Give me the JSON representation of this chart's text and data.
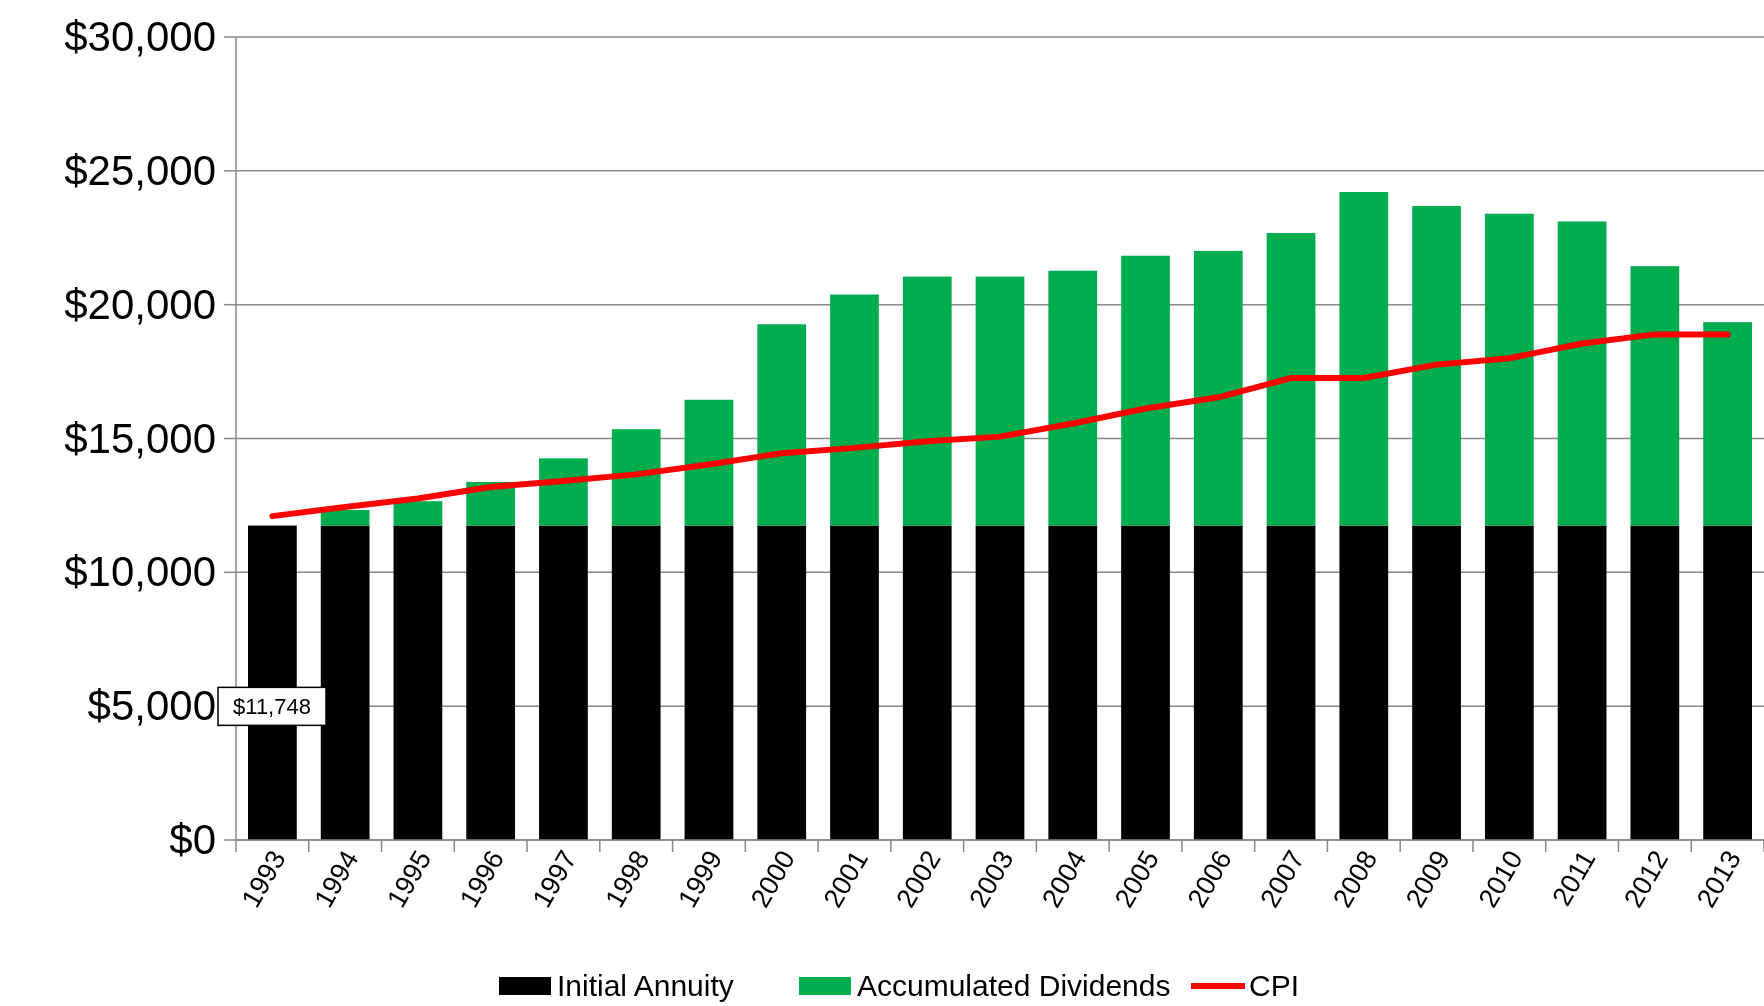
{
  "chart_data": {
    "type": "bar",
    "stacked": true,
    "categories": [
      "1993",
      "1994",
      "1995",
      "1996",
      "1997",
      "1998",
      "1999",
      "2000",
      "2001",
      "2002",
      "2003",
      "2004",
      "2005",
      "2006",
      "2007",
      "2008",
      "2009",
      "2010",
      "2011",
      "2012",
      "2013"
    ],
    "series": [
      {
        "name": "Initial Annuity",
        "color": "#000000",
        "values": [
          11748,
          11748,
          11748,
          11748,
          11748,
          11748,
          11748,
          11748,
          11748,
          11748,
          11748,
          11748,
          11748,
          11748,
          11748,
          11748,
          11748,
          11748,
          11748,
          11748,
          11748
        ],
        "value_labels": [
          "$11,748",
          null,
          null,
          null,
          null,
          null,
          null,
          null,
          null,
          null,
          null,
          null,
          null,
          null,
          null,
          null,
          null,
          null,
          null,
          null,
          null
        ]
      },
      {
        "name": "Accumulated Dividends",
        "color": "#00ad4e",
        "values": [
          0,
          580,
          910,
          1630,
          2510,
          3600,
          4700,
          7520,
          8630,
          9300,
          9300,
          9520,
          10080,
          10260,
          10930,
          12460,
          11940,
          11650,
          11360,
          9690,
          7600
        ]
      },
      {
        "name": "CPI",
        "type": "line",
        "color": "#ff0000",
        "values": [
          12100,
          12440,
          12760,
          13190,
          13410,
          13660,
          14030,
          14450,
          14650,
          14900,
          15070,
          15560,
          16120,
          16540,
          17260,
          17260,
          17760,
          18000,
          18550,
          18890,
          18890
        ]
      }
    ],
    "ylim": [
      0,
      30000
    ],
    "yticks": [
      {
        "value": 0,
        "label": "$0"
      },
      {
        "value": 5000,
        "label": "$5,000"
      },
      {
        "value": 10000,
        "label": "$10,000"
      },
      {
        "value": 15000,
        "label": "$15,000"
      },
      {
        "value": 20000,
        "label": "$20,000"
      },
      {
        "value": 25000,
        "label": "$25,000"
      },
      {
        "value": 30000,
        "label": "$30,000"
      }
    ],
    "grid": "y",
    "legend": "bottom"
  }
}
